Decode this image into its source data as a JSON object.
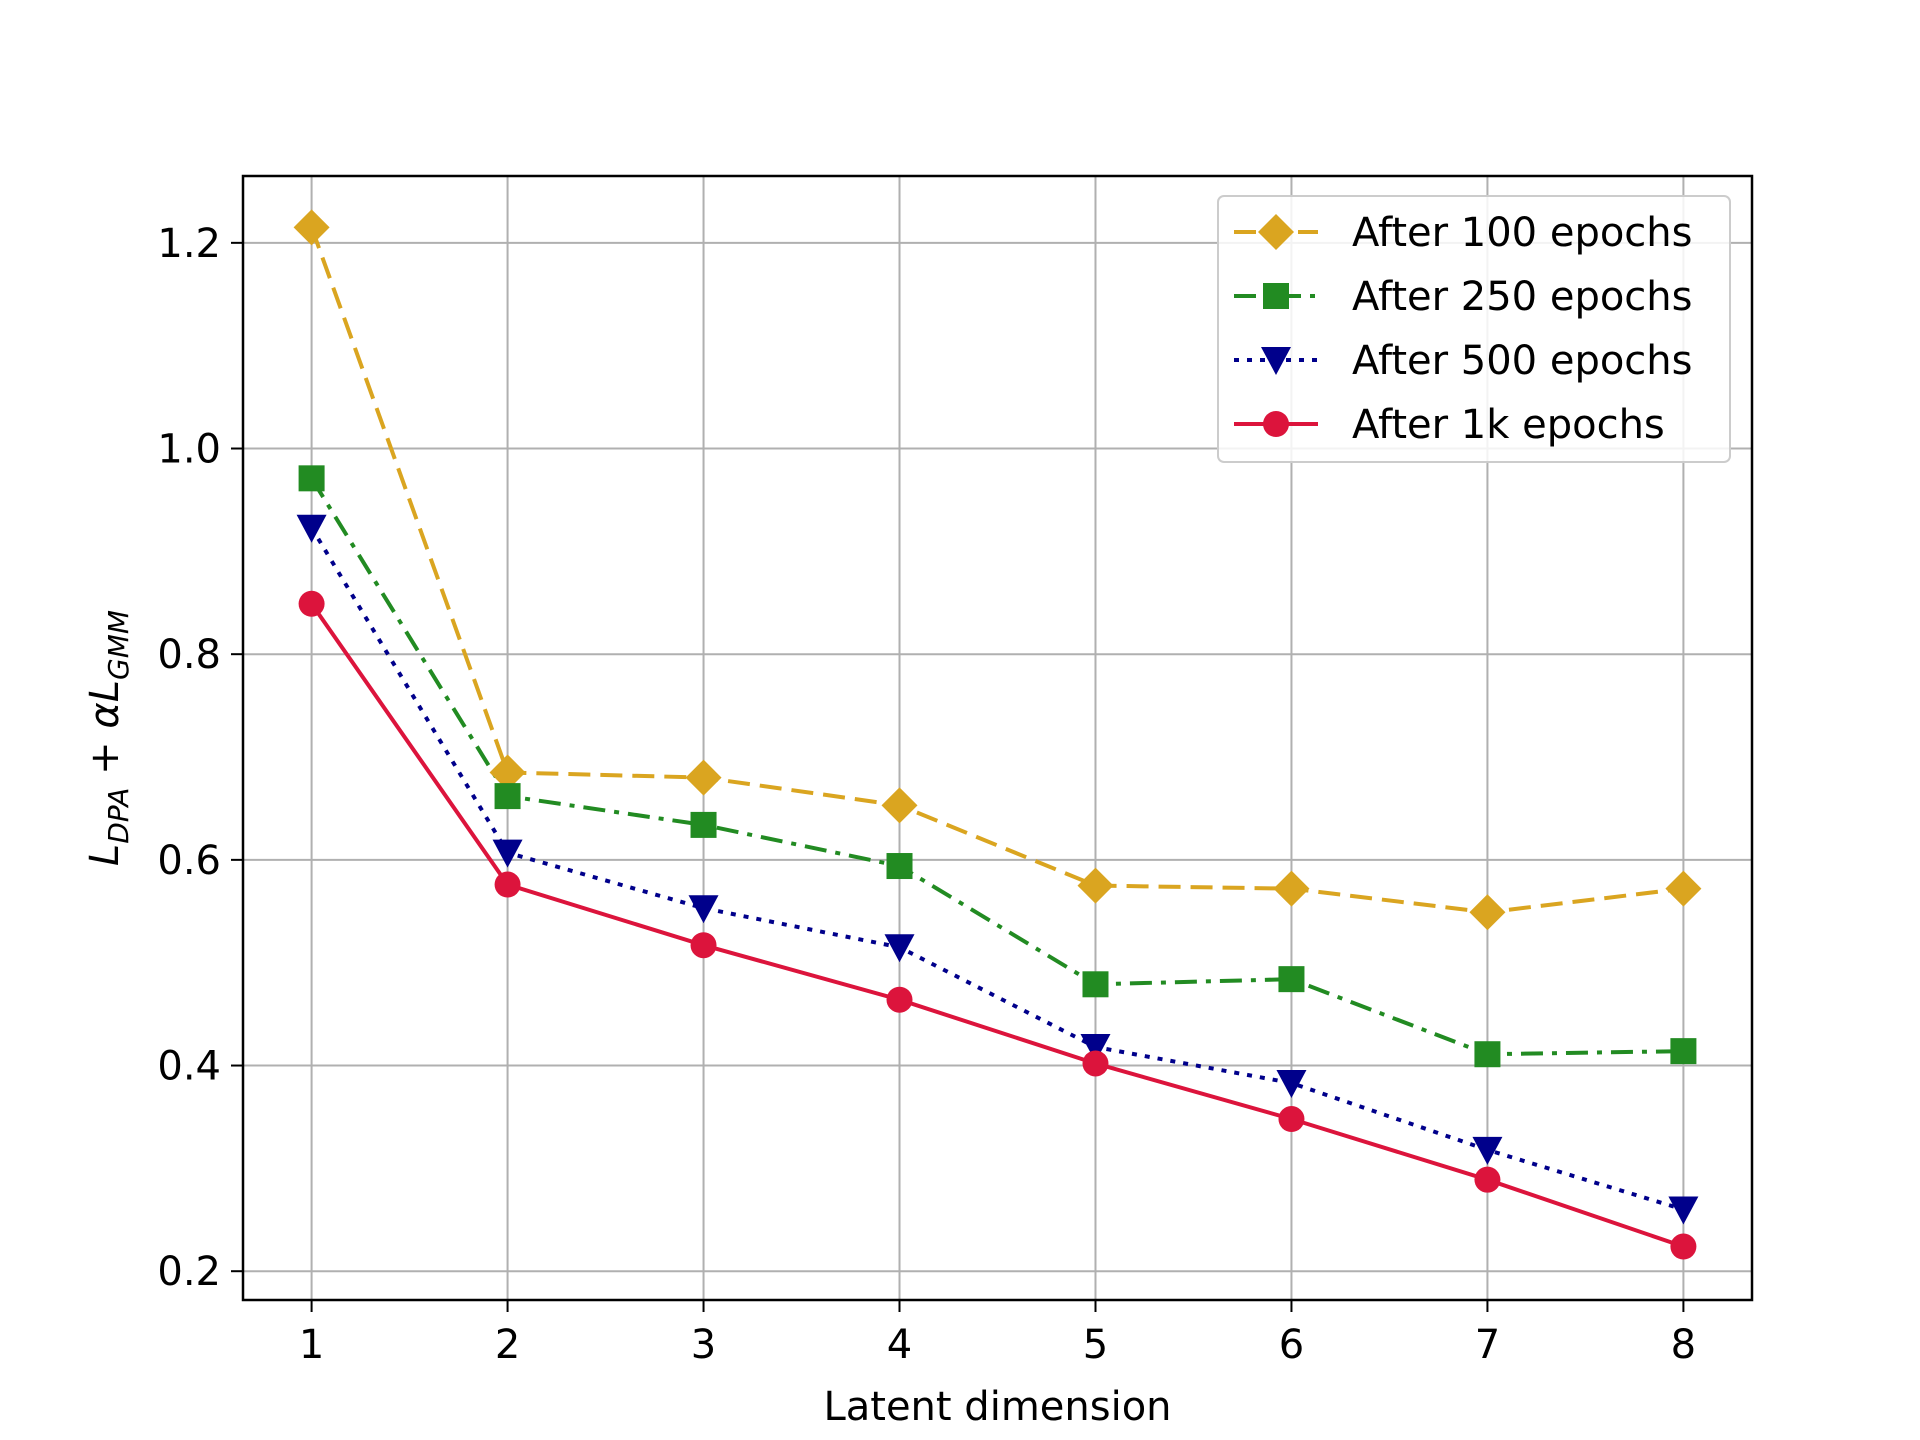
{
  "chart_data": {
    "type": "line",
    "title": "",
    "xlabel": "Latent dimension",
    "ylabel": {
      "base": "L",
      "sub1": "DPA",
      "op": " + α",
      "base2": "L",
      "sub2": "GMM"
    },
    "x": [
      1,
      2,
      3,
      4,
      5,
      6,
      7,
      8
    ],
    "xlim": [
      0.65,
      8.35
    ],
    "ylim": [
      0.172,
      1.265
    ],
    "xticks": [
      1,
      2,
      3,
      4,
      5,
      6,
      7,
      8
    ],
    "yticks": [
      0.2,
      0.4,
      0.6,
      0.8,
      1.0,
      1.2
    ],
    "ytick_labels": [
      "0.2",
      "0.4",
      "0.6",
      "0.8",
      "1.0",
      "1.2"
    ],
    "grid": true,
    "legend_position": "top-right",
    "series": [
      {
        "name": "After 100 epochs",
        "color": "#DAA520",
        "linestyle": "dashed",
        "marker": "diamond",
        "values": [
          1.215,
          0.685,
          0.68,
          0.653,
          0.575,
          0.572,
          0.549,
          0.572
        ]
      },
      {
        "name": "After 250 epochs",
        "color": "#228B22",
        "linestyle": "dashdot",
        "marker": "square",
        "values": [
          0.971,
          0.662,
          0.634,
          0.594,
          0.479,
          0.484,
          0.411,
          0.414
        ]
      },
      {
        "name": "After 500 epochs",
        "color": "#00008B",
        "linestyle": "dotted",
        "marker": "triangle-down",
        "values": [
          0.923,
          0.607,
          0.553,
          0.515,
          0.418,
          0.383,
          0.318,
          0.26
        ]
      },
      {
        "name": "After 1k epochs",
        "color": "#DC143C",
        "linestyle": "solid",
        "marker": "circle",
        "values": [
          0.849,
          0.576,
          0.517,
          0.464,
          0.402,
          0.348,
          0.289,
          0.224
        ]
      }
    ]
  }
}
